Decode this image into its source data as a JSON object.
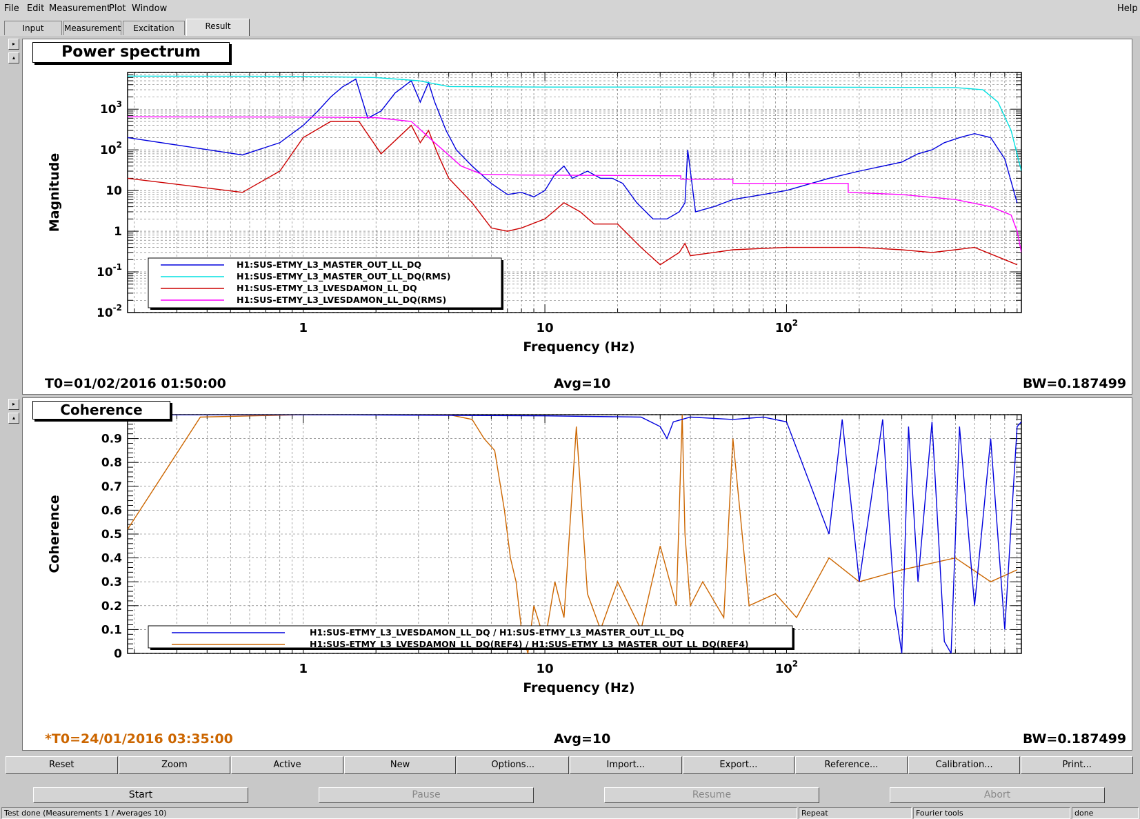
{
  "menu": {
    "items": [
      "File",
      "Edit",
      "Measurement",
      "Plot",
      "Window"
    ],
    "help": "Help"
  },
  "tabs": [
    "Input",
    "Measurement",
    "Excitation",
    "Result"
  ],
  "active_tab": "Result",
  "panels": {
    "top": {
      "title": "Power spectrum",
      "t0": "T0=01/02/2016 01:50:00",
      "avg": "Avg=10",
      "bw": "BW=0.187499"
    },
    "bottom": {
      "title": "Coherence",
      "t0": "*T0=24/01/2016 03:35:00",
      "avg": "Avg=10",
      "bw": "BW=0.187499"
    }
  },
  "colors": {
    "blue": "#0000dd",
    "cyan": "#00e0e0",
    "red": "#cc0000",
    "magenta": "#ff00ff",
    "orange": "#cc6600",
    "ref_t0": "#cc6600"
  },
  "chart_data": [
    {
      "type": "line",
      "title": "Power spectrum",
      "xlabel": "Frequency (Hz)",
      "ylabel": "Magnitude",
      "x_scale": "log",
      "y_scale": "log",
      "xlim": [
        0.1875,
        937.5
      ],
      "ylim": [
        0.01,
        8000
      ],
      "x_ticks": [
        {
          "value": 1,
          "label": "1",
          "sup": ""
        },
        {
          "value": 10,
          "label": "10",
          "sup": ""
        },
        {
          "value": 100,
          "label": "10",
          "sup": "2"
        }
      ],
      "y_ticks": [
        {
          "value": 1000,
          "label": "10",
          "sup": "3"
        },
        {
          "value": 100,
          "label": "10",
          "sup": "2"
        },
        {
          "value": 10,
          "label": "10",
          "sup": ""
        },
        {
          "value": 1,
          "label": "1",
          "sup": ""
        },
        {
          "value": 0.1,
          "label": "10",
          "sup": "-1"
        },
        {
          "value": 0.01,
          "label": "10",
          "sup": "-2"
        }
      ],
      "grid": true,
      "legend_position": "bottom-left",
      "series": [
        {
          "name": "H1:SUS-ETMY_L3_MASTER_OUT_LL_DQ",
          "color": "#0000dd",
          "x": [
            0.1875,
            0.56,
            0.8,
            1.0,
            1.15,
            1.3,
            1.45,
            1.65,
            1.85,
            2.1,
            2.4,
            2.8,
            3.05,
            3.3,
            3.5,
            3.9,
            4.3,
            5.0,
            6.0,
            7.0,
            8.0,
            9.0,
            10.0,
            11.0,
            12.0,
            13.0,
            15.0,
            17.0,
            19.0,
            21.0,
            24.0,
            28.0,
            32.0,
            36.0,
            38.0,
            39.0,
            42.0,
            50.0,
            60.0,
            80.0,
            100.0,
            150.0,
            200.0,
            300.0,
            350.0,
            400.0,
            450.0,
            520.0,
            600.0,
            700.0,
            800.0,
            900.0
          ],
          "y": [
            200,
            75,
            150,
            400,
            900,
            2000,
            3500,
            5500,
            600,
            900,
            2500,
            5000,
            1500,
            4500,
            1500,
            300,
            100,
            40,
            15,
            8,
            9,
            7,
            10,
            25,
            40,
            20,
            30,
            20,
            20,
            15,
            5,
            2,
            2,
            3,
            5,
            100,
            3,
            4,
            6,
            8,
            10,
            20,
            30,
            50,
            80,
            100,
            150,
            200,
            250,
            200,
            60,
            5
          ]
        },
        {
          "name": "H1:SUS-ETMY_L3_MASTER_OUT_LL_DQ(RMS)",
          "color": "#00e0e0",
          "x": [
            0.1875,
            1.0,
            2.0,
            3.0,
            4.0,
            10.0,
            100.0,
            500.0,
            650.0,
            750.0,
            850.0,
            937.5
          ],
          "y": [
            6500,
            6400,
            6000,
            5000,
            3600,
            3500,
            3500,
            3400,
            3000,
            1500,
            300,
            30
          ]
        },
        {
          "name": "H1:SUS-ETMY_L3_LVESDAMON_LL_DQ",
          "color": "#cc0000",
          "x": [
            0.1875,
            0.56,
            0.8,
            1.0,
            1.3,
            1.7,
            2.1,
            2.8,
            3.05,
            3.3,
            3.6,
            4.0,
            5.0,
            6.0,
            7.0,
            8.0,
            10.0,
            12.0,
            14.0,
            16.0,
            20.0,
            25.0,
            30.0,
            36.0,
            38.0,
            40.0,
            50.0,
            60.0,
            100.0,
            200.0,
            300.0,
            400.0,
            500.0,
            600.0,
            800.0,
            900.0
          ],
          "y": [
            20,
            9,
            30,
            200,
            500,
            500,
            80,
            400,
            150,
            300,
            80,
            20,
            5,
            1.2,
            1,
            1.2,
            2,
            5,
            3,
            1.5,
            1.5,
            0.4,
            0.15,
            0.3,
            0.5,
            0.25,
            0.3,
            0.35,
            0.4,
            0.4,
            0.35,
            0.3,
            0.35,
            0.4,
            0.2,
            0.15
          ]
        },
        {
          "name": "H1:SUS-ETMY_L3_LVESDAMON_LL_DQ(RMS)",
          "color": "#ff00ff",
          "x": [
            0.1875,
            1.0,
            2.0,
            2.8,
            3.5,
            4.5,
            5.5,
            8.0,
            36.5,
            36.5,
            60.0,
            60.0,
            100.0,
            180.0,
            180.0,
            300.0,
            500.0,
            700.0,
            850.0,
            900.0,
            937.5
          ],
          "y": [
            650,
            640,
            620,
            500,
            150,
            40,
            25,
            24,
            23,
            19,
            19,
            15,
            15,
            15,
            9,
            8,
            6,
            4,
            2.5,
            1,
            0.3
          ]
        }
      ]
    },
    {
      "type": "line",
      "title": "Coherence",
      "xlabel": "Frequency (Hz)",
      "ylabel": "Coherence",
      "x_scale": "log",
      "xlim": [
        0.1875,
        937.5
      ],
      "ylim": [
        0,
        1
      ],
      "x_ticks": [
        {
          "value": 1,
          "label": "1",
          "sup": ""
        },
        {
          "value": 10,
          "label": "10",
          "sup": ""
        },
        {
          "value": 100,
          "label": "10",
          "sup": "2"
        }
      ],
      "y_ticks": [
        0,
        0.1,
        0.2,
        0.3,
        0.4,
        0.5,
        0.6,
        0.7,
        0.8,
        0.9,
        1
      ],
      "grid": true,
      "legend_position": "bottom-left",
      "series": [
        {
          "name": "H1:SUS-ETMY_L3_LVESDAMON_LL_DQ / H1:SUS-ETMY_L3_MASTER_OUT_LL_DQ",
          "color": "#0000dd",
          "x": [
            0.1875,
            1.0,
            10.0,
            25.0,
            30.0,
            32.0,
            34.0,
            40.0,
            60.0,
            80.0,
            100.0,
            150.0,
            170.0,
            200.0,
            250.0,
            280.0,
            300.0,
            320.0,
            350.0,
            400.0,
            450.0,
            480.0,
            520.0,
            600.0,
            700.0,
            800.0,
            900.0,
            937.5
          ],
          "y": [
            1,
            1,
            0.995,
            0.99,
            0.95,
            0.9,
            0.97,
            0.99,
            0.98,
            0.99,
            0.97,
            0.5,
            0.98,
            0.3,
            0.98,
            0.2,
            0.0,
            0.95,
            0.3,
            0.97,
            0.05,
            0.0,
            0.95,
            0.2,
            0.9,
            0.1,
            0.95,
            0.97
          ]
        },
        {
          "name": "H1:SUS-ETMY_L3_LVESDAMON_LL_DQ(REF4) / H1:SUS-ETMY_L3_MASTER_OUT_LL_DQ(REF4)",
          "color": "#cc6600",
          "x": [
            0.1875,
            0.375,
            1.0,
            2.0,
            4.0,
            5.0,
            5.6,
            6.2,
            6.8,
            7.2,
            7.6,
            8.0,
            8.5,
            9.0,
            10.0,
            11.0,
            12.0,
            13.5,
            15.0,
            17.0,
            20.0,
            25.0,
            30.0,
            35.0,
            37.0,
            38.0,
            40.0,
            45.0,
            55.0,
            60.0,
            70.0,
            90.0,
            110.0,
            150.0,
            200.0,
            300.0,
            500.0,
            700.0,
            900.0
          ],
          "y": [
            0.52,
            0.99,
            1,
            1,
            1,
            0.98,
            0.9,
            0.85,
            0.6,
            0.4,
            0.3,
            0.1,
            0.0,
            0.2,
            0.05,
            0.3,
            0.15,
            0.95,
            0.25,
            0.1,
            0.3,
            0.1,
            0.45,
            0.2,
            1,
            0.5,
            0.2,
            0.3,
            0.15,
            0.9,
            0.2,
            0.25,
            0.15,
            0.4,
            0.3,
            0.35,
            0.4,
            0.3,
            0.35
          ]
        }
      ]
    }
  ],
  "plot_buttons": [
    "Reset",
    "Zoom",
    "Active",
    "New",
    "Options...",
    "Import...",
    "Export...",
    "Reference...",
    "Calibration...",
    "Print..."
  ],
  "controls": {
    "start": "Start",
    "pause": "Pause",
    "resume": "Resume",
    "abort": "Abort"
  },
  "status": {
    "message": "Test done (Measurements 1 / Averages 10)",
    "repeat": "Repeat",
    "tools": "Fourier tools",
    "state": "done"
  }
}
